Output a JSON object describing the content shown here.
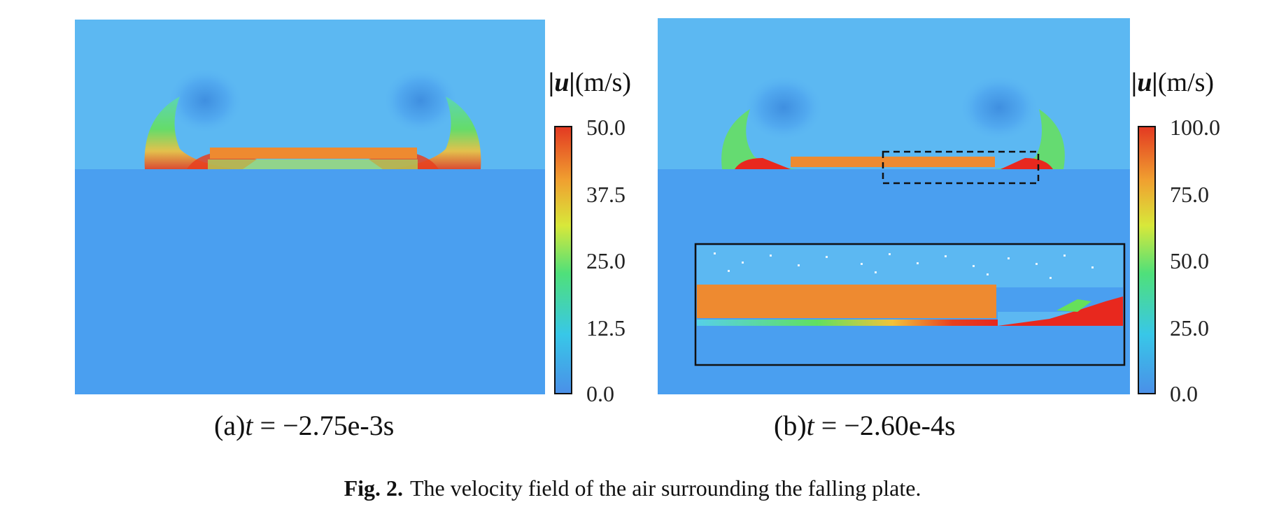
{
  "panel_a": {
    "colorbar": {
      "label_symbol": "|u|",
      "label_unit": "(m/s)",
      "ticks": [
        "50.0",
        "37.5",
        "25.0",
        "12.5",
        "0.0"
      ],
      "max": 50.0,
      "min": 0.0
    },
    "caption_prefix": "(a)",
    "caption_var": "t",
    "caption_value": "= −2.75e-3s"
  },
  "panel_b": {
    "colorbar": {
      "label_symbol": "|u|",
      "label_unit": "(m/s)",
      "ticks": [
        "100.0",
        "75.0",
        "50.0",
        "25.0",
        "0.0"
      ],
      "max": 100.0,
      "min": 0.0
    },
    "caption_prefix": "(b)",
    "caption_var": "t",
    "caption_value": "= −2.60e-4s"
  },
  "figure_caption": {
    "label": "Fig. 2.",
    "text": "The velocity field of the air surrounding the falling plate."
  },
  "colors": {
    "background_field": "#4a9ff0",
    "upper_field": "#5cb8f2",
    "plate": "#ee8a30",
    "high_velocity": "#e8281e"
  }
}
